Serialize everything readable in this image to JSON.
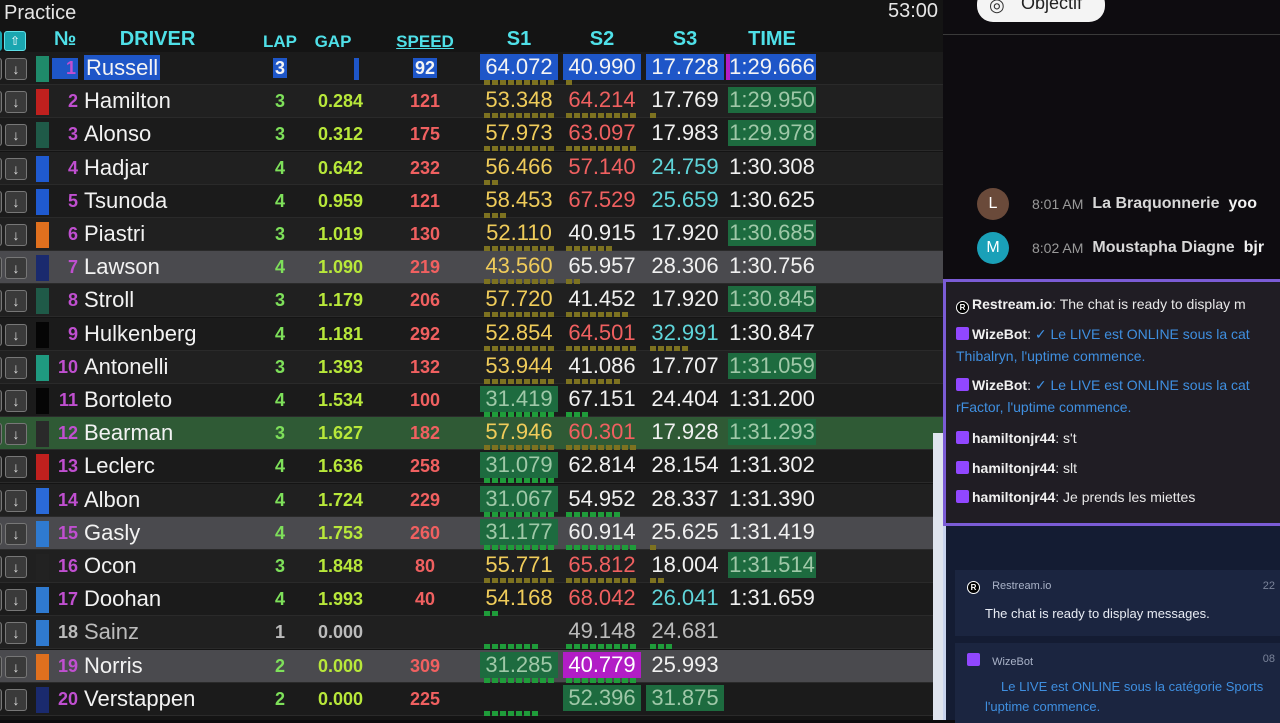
{
  "session": {
    "title": "Practice",
    "clock": "53:00"
  },
  "header": {
    "sort_icon": "arrow-up-icon",
    "pos": "№",
    "driver": "DRIVER",
    "lap": "LAP",
    "gap": "GAP",
    "speed": "SPEED",
    "s1": "S1",
    "s2": "S2",
    "s3": "S3",
    "time": "TIME"
  },
  "rows": [
    {
      "pos": "1",
      "name": "Russell",
      "lap": "3",
      "gap": "",
      "speed": "92",
      "s1": "64.072",
      "s2": "40.990",
      "s3": "17.728",
      "time": "1:29.666",
      "team": "#1f8a6a"
    },
    {
      "pos": "2",
      "name": "Hamilton",
      "lap": "3",
      "gap": "0.284",
      "speed": "121",
      "s1": "53.348",
      "s2": "64.214",
      "s3": "17.769",
      "time": "1:29.950",
      "team": "#c0201e"
    },
    {
      "pos": "3",
      "name": "Alonso",
      "lap": "3",
      "gap": "0.312",
      "speed": "175",
      "s1": "57.973",
      "s2": "63.097",
      "s3": "17.983",
      "time": "1:29.978",
      "team": "#1f5a48"
    },
    {
      "pos": "4",
      "name": "Hadjar",
      "lap": "4",
      "gap": "0.642",
      "speed": "232",
      "s1": "56.466",
      "s2": "57.140",
      "s3": "24.759",
      "time": "1:30.308",
      "team": "#1f5ad0"
    },
    {
      "pos": "5",
      "name": "Tsunoda",
      "lap": "4",
      "gap": "0.959",
      "speed": "121",
      "s1": "58.453",
      "s2": "67.529",
      "s3": "25.659",
      "time": "1:30.625",
      "team": "#1f5ad0"
    },
    {
      "pos": "6",
      "name": "Piastri",
      "lap": "3",
      "gap": "1.019",
      "speed": "130",
      "s1": "52.110",
      "s2": "40.915",
      "s3": "17.920",
      "time": "1:30.685",
      "team": "#e0701e"
    },
    {
      "pos": "7",
      "name": "Lawson",
      "lap": "4",
      "gap": "1.090",
      "speed": "219",
      "s1": "43.560",
      "s2": "65.957",
      "s3": "28.306",
      "time": "1:30.756",
      "team": "#1a2a6e"
    },
    {
      "pos": "8",
      "name": "Stroll",
      "lap": "3",
      "gap": "1.179",
      "speed": "206",
      "s1": "57.720",
      "s2": "41.452",
      "s3": "17.920",
      "time": "1:30.845",
      "team": "#1f5a48"
    },
    {
      "pos": "9",
      "name": "Hulkenberg",
      "lap": "4",
      "gap": "1.181",
      "speed": "292",
      "s1": "52.854",
      "s2": "64.501",
      "s3": "32.991",
      "time": "1:30.847",
      "team": "#050505"
    },
    {
      "pos": "10",
      "name": "Antonelli",
      "lap": "3",
      "gap": "1.393",
      "speed": "132",
      "s1": "53.944",
      "s2": "41.086",
      "s3": "17.707",
      "time": "1:31.059",
      "team": "#1f9a80"
    },
    {
      "pos": "11",
      "name": "Bortoleto",
      "lap": "4",
      "gap": "1.534",
      "speed": "100",
      "s1": "31.419",
      "s2": "67.151",
      "s3": "24.404",
      "time": "1:31.200",
      "team": "#050505"
    },
    {
      "pos": "12",
      "name": "Bearman",
      "lap": "3",
      "gap": "1.627",
      "speed": "182",
      "s1": "57.946",
      "s2": "60.301",
      "s3": "17.928",
      "time": "1:31.293",
      "team": "#2a2a2a"
    },
    {
      "pos": "13",
      "name": "Leclerc",
      "lap": "4",
      "gap": "1.636",
      "speed": "258",
      "s1": "31.079",
      "s2": "62.814",
      "s3": "28.154",
      "time": "1:31.302",
      "team": "#c0201e"
    },
    {
      "pos": "14",
      "name": "Albon",
      "lap": "4",
      "gap": "1.724",
      "speed": "229",
      "s1": "31.067",
      "s2": "54.952",
      "s3": "28.337",
      "time": "1:31.390",
      "team": "#2a6ad8"
    },
    {
      "pos": "15",
      "name": "Gasly",
      "lap": "4",
      "gap": "1.753",
      "speed": "260",
      "s1": "31.177",
      "s2": "60.914",
      "s3": "25.625",
      "time": "1:31.419",
      "team": "#2f7ad0"
    },
    {
      "pos": "16",
      "name": "Ocon",
      "lap": "3",
      "gap": "1.848",
      "speed": "80",
      "s1": "55.771",
      "s2": "65.812",
      "s3": "18.004",
      "time": "1:31.514",
      "team": "#222222"
    },
    {
      "pos": "17",
      "name": "Doohan",
      "lap": "4",
      "gap": "1.993",
      "speed": "40",
      "s1": "54.168",
      "s2": "68.042",
      "s3": "26.041",
      "time": "1:31.659",
      "team": "#2f7ad0"
    },
    {
      "pos": "18",
      "name": "Sainz",
      "lap": "1",
      "gap": "0.000",
      "speed": "",
      "s1": "",
      "s2": "49.148",
      "s3": "24.681",
      "time": "",
      "team": "#2f7ad0"
    },
    {
      "pos": "19",
      "name": "Norris",
      "lap": "2",
      "gap": "0.000",
      "speed": "309",
      "s1": "31.285",
      "s2": "40.779",
      "s3": "25.993",
      "time": "",
      "team": "#e0701e"
    },
    {
      "pos": "20",
      "name": "Verstappen",
      "lap": "2",
      "gap": "0.000",
      "speed": "225",
      "s1": "",
      "s2": "52.396",
      "s3": "31.875",
      "time": "",
      "team": "#1a2a6e"
    }
  ],
  "chat_top": {
    "objectif_label": "Objectif",
    "objectif_icon": "target-add-icon",
    "messages": [
      {
        "avatar": "L",
        "avatar_color": "#6a4a3a",
        "time": "8:01 AM",
        "user": "La Braquonnerie",
        "text": "yoo"
      },
      {
        "avatar": "M",
        "avatar_color": "#1aa0b8",
        "time": "8:02 AM",
        "user": "Moustapha Diagne",
        "text": "bjr"
      }
    ]
  },
  "chat_box": {
    "lines": [
      {
        "icon": "restream-icon",
        "user": "Restream.io",
        "text": "The chat is ready to display m"
      },
      {
        "icon": "twitch-icon",
        "user": "WizeBot",
        "text": "✓ Le LIVE est ONLINE sous la cat",
        "cont": "Thibalryn, l'uptime commence."
      },
      {
        "icon": "twitch-icon",
        "user": "WizeBot",
        "text": "✓ Le LIVE est ONLINE sous la cat",
        "cont": "rFactor, l'uptime commence."
      },
      {
        "icon": "twitch-icon",
        "user": "hamiltonjr44",
        "text": "s't"
      },
      {
        "icon": "twitch-icon",
        "user": "hamiltonjr44",
        "text": "slt"
      },
      {
        "icon": "twitch-icon",
        "user": "hamiltonjr44",
        "text": "Je prends les miettes"
      }
    ]
  },
  "bottom_chat": {
    "cards": [
      {
        "icon": "restream-icon",
        "user": "Restream.io",
        "time": "22",
        "text": "The chat is ready to display messages."
      },
      {
        "icon": "twitch-icon",
        "user": "WizeBot",
        "time": "08",
        "text": "Le LIVE est ONLINE sous la catégorie Sports",
        "cont": "l'uptime commence."
      }
    ]
  }
}
